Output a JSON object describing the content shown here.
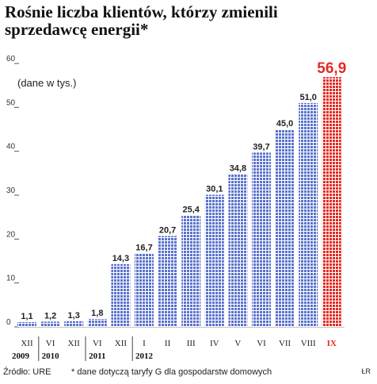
{
  "title": "Rośnie liczba klientów, którzy zmienili sprzedawcę energii*",
  "unit_note": "(dane w tys.)",
  "footer": {
    "source": "Źródło: URE",
    "note": "* dane dotyczą taryfy G dla gospodarstw domowych",
    "credit": "ŁR"
  },
  "colors": {
    "bar": "#5b73cc",
    "bar_highlight": "#e32b24",
    "value_highlight": "#e32b24"
  },
  "chart_data": {
    "type": "bar",
    "title": "Rośnie liczba klientów, którzy zmienili sprzedawcę energii*",
    "ylabel": "(dane w tys.)",
    "ylim": [
      0,
      60
    ],
    "yticks": [
      "0",
      "10",
      "20",
      "30",
      "40",
      "50",
      "60"
    ],
    "grid": false,
    "categories": [
      "XII",
      "VI",
      "XII",
      "VI",
      "XII",
      "I",
      "II",
      "III",
      "IV",
      "V",
      "VI",
      "VII",
      "VIII",
      "IX"
    ],
    "values": [
      1.1,
      1.2,
      1.3,
      1.8,
      14.3,
      16.7,
      20.7,
      25.4,
      30.1,
      34.8,
      39.7,
      45.0,
      51.0,
      56.9
    ],
    "value_labels": [
      "1,1",
      "1,2",
      "1,3",
      "1,8",
      "14,3",
      "16,7",
      "20,7",
      "25,4",
      "30,1",
      "34,8",
      "39,7",
      "45,0",
      "51,0",
      "56,9"
    ],
    "highlight_index": 13,
    "year_labels": [
      {
        "label": "2009",
        "category_index": 0
      },
      {
        "label": "2010",
        "category_index": 1
      },
      {
        "label": "2011",
        "category_index": 3
      },
      {
        "label": "2012",
        "category_index": 5
      }
    ]
  }
}
